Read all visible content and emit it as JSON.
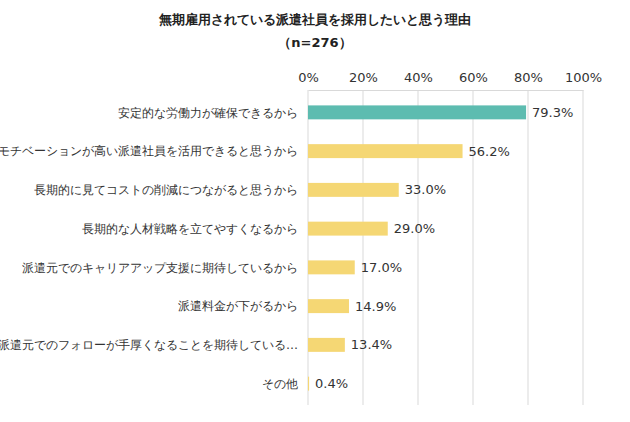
{
  "chart_data": {
    "type": "bar",
    "orientation": "horizontal",
    "title": "無期雇用されている派遣社員を採用したいと思う理由",
    "subtitle": "（n=276）",
    "categories": [
      "安定的な労働力が確保できるから",
      "モチベーションが高い派遣社員を活用できると思うから",
      "長期的に見てコストの削減につながると思うから",
      "長期的な人材戦略を立てやすくなるから",
      "派遣元でのキャリアアップ支援に期待しているから",
      "派遣料金が下がるから",
      "派遣元でのフォローが手厚くなることを期待している…",
      "その他"
    ],
    "values": [
      79.3,
      56.2,
      33.0,
      29.0,
      17.0,
      14.9,
      13.4,
      0.4
    ],
    "value_labels": [
      "79.3%",
      "56.2%",
      "33.0%",
      "29.0%",
      "17.0%",
      "14.9%",
      "13.4%",
      "0.4%"
    ],
    "colors": [
      "#5dbcb0",
      "#f5d774",
      "#f5d774",
      "#f5d774",
      "#f5d774",
      "#f5d774",
      "#f5d774",
      "#f5d774"
    ],
    "xlim": [
      0,
      100
    ],
    "xticks": [
      {
        "value": 0,
        "label": "0%"
      },
      {
        "value": 20,
        "label": "20%"
      },
      {
        "value": 40,
        "label": "40%"
      },
      {
        "value": 60,
        "label": "60%"
      },
      {
        "value": 80,
        "label": "80%"
      },
      {
        "value": 100,
        "label": "100%"
      }
    ],
    "grid": true,
    "data_labels": true
  }
}
